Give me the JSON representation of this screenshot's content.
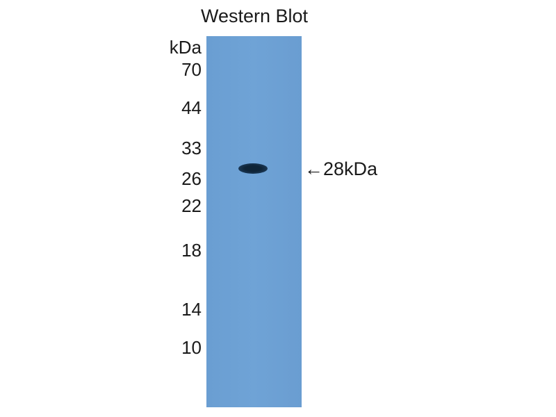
{
  "title": "Western Blot",
  "markers": {
    "unit": "kDa",
    "labels": [
      "70",
      "44",
      "33",
      "26",
      "22",
      "18",
      "14",
      "10"
    ]
  },
  "band_annotation": {
    "arrow": "←",
    "label": "28kDa"
  },
  "colors": {
    "membrane": "#6fa3d6",
    "band": "#0f2437"
  }
}
